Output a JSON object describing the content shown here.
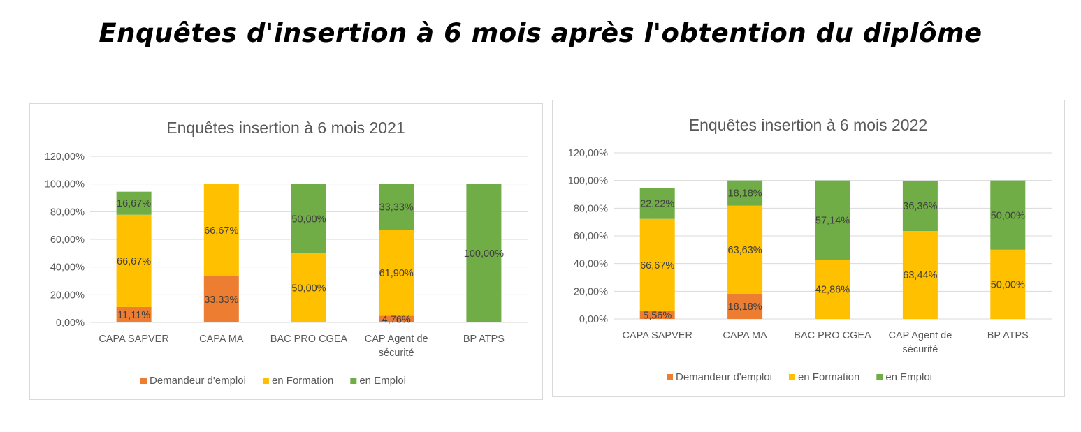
{
  "page_title": "Enquêtes d'insertion à 6 mois après l'obtention du diplôme",
  "colors": {
    "demandeur": "#ED7D31",
    "formation": "#FFC000",
    "emploi": "#70AD47",
    "grid": "#d9d9d9",
    "text": "#595959"
  },
  "chart_data": [
    {
      "type": "bar",
      "stacked": true,
      "title": "Enquêtes insertion à 6 mois 2021",
      "ylim": [
        0,
        1.2
      ],
      "ytick_labels": [
        "0,00%",
        "20,00%",
        "40,00%",
        "60,00%",
        "80,00%",
        "100,00%",
        "120,00%"
      ],
      "categories": [
        [
          "CAPA SAPVER"
        ],
        [
          "CAPA MA"
        ],
        [
          "BAC PRO CGEA"
        ],
        [
          "CAP Agent de",
          "sécurité"
        ],
        [
          "BP ATPS"
        ]
      ],
      "legend": "bottom",
      "series": [
        {
          "name": "Demandeur d'emploi",
          "color_key": "demandeur",
          "values": [
            0.1111,
            0.3333,
            0,
            0.0476,
            0
          ],
          "labels": [
            "11,11%",
            "33,33%",
            "",
            "4,76%",
            ""
          ]
        },
        {
          "name": "en Formation",
          "color_key": "formation",
          "values": [
            0.6667,
            0.6667,
            0.5,
            0.619,
            0
          ],
          "labels": [
            "66,67%",
            "66,67%",
            "50,00%",
            "61,90%",
            ""
          ]
        },
        {
          "name": "en Emploi",
          "color_key": "emploi",
          "values": [
            0.1667,
            0,
            0.5,
            0.3333,
            1.0
          ],
          "labels": [
            "16,67%",
            "",
            "50,00%",
            "33,33%",
            "100,00%"
          ]
        }
      ]
    },
    {
      "type": "bar",
      "stacked": true,
      "title": "Enquêtes insertion à 6 mois 2022",
      "ylim": [
        0,
        1.2
      ],
      "ytick_labels": [
        "0,00%",
        "20,00%",
        "40,00%",
        "60,00%",
        "80,00%",
        "100,00%",
        "120,00%"
      ],
      "categories": [
        [
          "CAPA SAPVER"
        ],
        [
          "CAPA MA"
        ],
        [
          "BAC PRO CGEA"
        ],
        [
          "CAP Agent de",
          "sécurité"
        ],
        [
          "BP ATPS"
        ]
      ],
      "legend": "bottom",
      "series": [
        {
          "name": "Demandeur d'emploi",
          "color_key": "demandeur",
          "values": [
            0.0556,
            0.1818,
            0,
            0,
            0
          ],
          "labels": [
            "5,56%",
            "18,18%",
            "",
            "",
            ""
          ]
        },
        {
          "name": "en Formation",
          "color_key": "formation",
          "values": [
            0.6667,
            0.6363,
            0.4286,
            0.6344,
            0.5
          ],
          "labels": [
            "66,67%",
            "63,63%",
            "42,86%",
            "63,44%",
            "50,00%"
          ]
        },
        {
          "name": "en Emploi",
          "color_key": "emploi",
          "values": [
            0.2222,
            0.1818,
            0.5714,
            0.3636,
            0.5
          ],
          "labels": [
            "22,22%",
            "18,18%",
            "57,14%",
            "36,36%",
            "50,00%"
          ]
        }
      ]
    }
  ]
}
